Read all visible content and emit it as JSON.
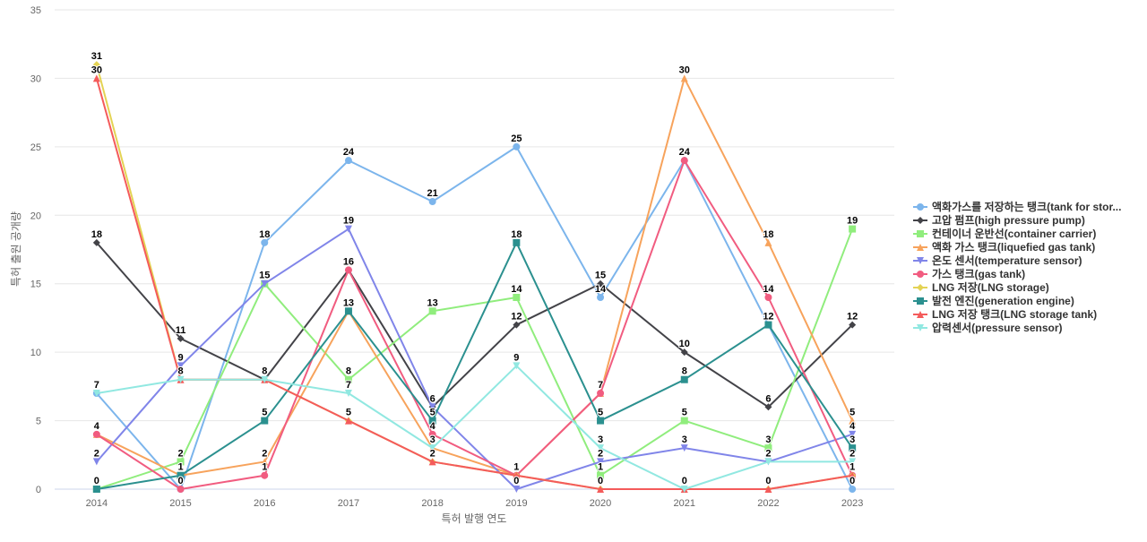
{
  "chart_data": {
    "type": "line",
    "xlabel": "특허 발행 연도",
    "ylabel": "특허 출원 공개량",
    "categories": [
      "2014",
      "2015",
      "2016",
      "2017",
      "2018",
      "2019",
      "2020",
      "2021",
      "2022",
      "2023"
    ],
    "ylim": [
      0,
      35
    ],
    "yticks": [
      0,
      5,
      10,
      15,
      20,
      25,
      30,
      35
    ],
    "grid": true,
    "legend_position": "right",
    "data_labels": true,
    "series": [
      {
        "name": "액화가스를 저장하는 탱크(tank for stor...",
        "color": "#7cb5ec",
        "marker": "circle",
        "values": [
          7,
          0,
          18,
          24,
          21,
          25,
          14,
          24,
          12,
          0
        ]
      },
      {
        "name": "고압 펌프(high pressure pump)",
        "color": "#434348",
        "marker": "diamond",
        "values": [
          18,
          11,
          8,
          16,
          6,
          12,
          15,
          10,
          6,
          12
        ]
      },
      {
        "name": "컨테이너 운반선(container carrier)",
        "color": "#90ed7d",
        "marker": "square",
        "values": [
          0,
          2,
          15,
          8,
          13,
          14,
          1,
          5,
          3,
          19
        ]
      },
      {
        "name": "액화 가스 탱크(liquefied gas tank)",
        "color": "#f7a35c",
        "marker": "triangle",
        "values": [
          4,
          1,
          2,
          13,
          3,
          1,
          7,
          30,
          18,
          5
        ]
      },
      {
        "name": "온도 센서(temperature sensor)",
        "color": "#8085e9",
        "marker": "triangle-down",
        "values": [
          2,
          9,
          15,
          19,
          6,
          0,
          2,
          3,
          2,
          4
        ]
      },
      {
        "name": "가스 탱크(gas tank)",
        "color": "#f15c80",
        "marker": "circle",
        "values": [
          4,
          0,
          1,
          16,
          4,
          1,
          7,
          24,
          14,
          1
        ]
      },
      {
        "name": "LNG 저장(LNG storage)",
        "color": "#e4d354",
        "marker": "diamond",
        "values": [
          31,
          8,
          8,
          5,
          2,
          1,
          0,
          0,
          0,
          1
        ]
      },
      {
        "name": "발전 엔진(generation engine)",
        "color": "#2b908f",
        "marker": "square",
        "values": [
          0,
          1,
          5,
          13,
          5,
          18,
          5,
          8,
          12,
          3
        ]
      },
      {
        "name": "LNG 저장 탱크(LNG storage tank)",
        "color": "#f45b5b",
        "marker": "triangle",
        "values": [
          30,
          8,
          8,
          5,
          2,
          1,
          0,
          0,
          0,
          1
        ]
      },
      {
        "name": "압력센서(pressure sensor)",
        "color": "#91e8e1",
        "marker": "triangle-down",
        "values": [
          7,
          8,
          8,
          7,
          3,
          9,
          3,
          0,
          2,
          2
        ]
      }
    ]
  }
}
